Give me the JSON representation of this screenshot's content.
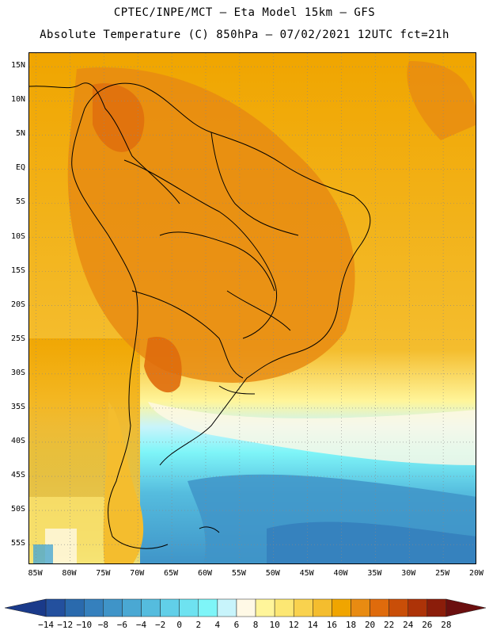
{
  "header": {
    "line1": "CPTEC/INPE/MCT –  Eta Model 15km – GFS",
    "line2": "Absolute Temperature (C) 850hPa – 07/02/2021 12UTC fct=21h"
  },
  "map": {
    "lat_labels": [
      "15N",
      "10N",
      "5N",
      "EQ",
      "5S",
      "10S",
      "15S",
      "20S",
      "25S",
      "30S",
      "35S",
      "40S",
      "45S",
      "50S",
      "55S"
    ],
    "lon_labels": [
      "85W",
      "80W",
      "75W",
      "70W",
      "65W",
      "60W",
      "55W",
      "50W",
      "45W",
      "40W",
      "35W",
      "30W",
      "25W",
      "20W"
    ],
    "lat_range": [
      17,
      -58
    ],
    "lon_range": [
      -86,
      -20
    ],
    "grid": true
  },
  "colorbar": {
    "labels": [
      "-14",
      "-12",
      "-10",
      "-8",
      "-6",
      "-4",
      "-2",
      "0",
      "2",
      "4",
      "6",
      "8",
      "10",
      "12",
      "14",
      "16",
      "18",
      "20",
      "22",
      "24",
      "26",
      "28"
    ],
    "colors": [
      "#1a3a8a",
      "#23509e",
      "#2a6aad",
      "#3580bd",
      "#3f94c8",
      "#4aa8d3",
      "#55bcde",
      "#61cfe8",
      "#6ee2f0",
      "#7ef5f8",
      "#c8f4fb",
      "#fff9e6",
      "#fff59a",
      "#fce773",
      "#f9d24e",
      "#f4bd2e",
      "#f0a500",
      "#e88b12",
      "#df6b0c",
      "#c94e08",
      "#ad3308",
      "#8b1d0a",
      "#6b0f0f"
    ]
  }
}
